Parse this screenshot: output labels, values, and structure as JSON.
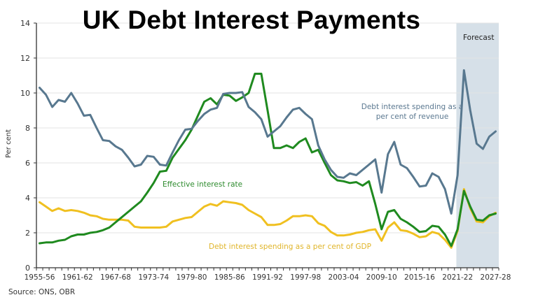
{
  "chart_data": {
    "type": "line",
    "title": "UK Debt Interest Payments",
    "xlabel": "",
    "ylabel": "Per cent",
    "ylim": [
      0,
      14
    ],
    "yticks": [
      0,
      2,
      4,
      6,
      8,
      10,
      12,
      14
    ],
    "grid": true,
    "x_tick_labels": [
      "1955-56",
      "1961-62",
      "1967-68",
      "1973-74",
      "1979-80",
      "1985-86",
      "1991-92",
      "1997-98",
      "2003-04",
      "2009-10",
      "2015-16",
      "2021-22",
      "2027-28"
    ],
    "x_start_year": 1955,
    "x": [
      "1955-56",
      "1956-57",
      "1957-58",
      "1958-59",
      "1959-60",
      "1960-61",
      "1961-62",
      "1962-63",
      "1963-64",
      "1964-65",
      "1965-66",
      "1966-67",
      "1967-68",
      "1968-69",
      "1969-70",
      "1970-71",
      "1971-72",
      "1972-73",
      "1973-74",
      "1974-75",
      "1975-76",
      "1976-77",
      "1977-78",
      "1978-79",
      "1979-80",
      "1980-81",
      "1981-82",
      "1982-83",
      "1983-84",
      "1984-85",
      "1985-86",
      "1986-87",
      "1987-88",
      "1988-89",
      "1989-90",
      "1990-91",
      "1991-92",
      "1992-93",
      "1993-94",
      "1994-95",
      "1995-96",
      "1996-97",
      "1997-98",
      "1998-99",
      "1999-00",
      "2000-01",
      "2001-02",
      "2002-03",
      "2003-04",
      "2004-05",
      "2005-06",
      "2006-07",
      "2007-08",
      "2008-09",
      "2009-10",
      "2010-11",
      "2011-12",
      "2012-13",
      "2013-14",
      "2014-15",
      "2015-16",
      "2016-17",
      "2017-18",
      "2018-19",
      "2019-20",
      "2020-21",
      "2021-22",
      "2022-23",
      "2023-24",
      "2024-25",
      "2025-26",
      "2026-27",
      "2027-28"
    ],
    "forecast_region": {
      "label": "Forecast",
      "from": "2021-22",
      "to": "2027-28",
      "color": "#d6e0e8"
    },
    "series": [
      {
        "name": "Debt interest spending as a per cent of revenue",
        "color": "#58788f",
        "values": [
          10.3,
          9.9,
          9.2,
          9.6,
          9.5,
          10.0,
          9.4,
          8.7,
          8.75,
          8.0,
          7.3,
          7.25,
          6.95,
          6.75,
          6.3,
          5.8,
          5.9,
          6.4,
          6.35,
          5.9,
          5.85,
          6.6,
          7.3,
          7.9,
          7.95,
          8.4,
          8.8,
          9.05,
          9.15,
          9.95,
          10.0,
          10.0,
          10.05,
          9.2,
          8.9,
          8.5,
          7.5,
          7.8,
          8.1,
          8.6,
          9.05,
          9.15,
          8.8,
          8.5,
          7.0,
          6.2,
          5.6,
          5.2,
          5.15,
          5.4,
          5.3,
          5.6,
          5.9,
          6.2,
          4.3,
          6.5,
          7.2,
          5.9,
          5.7,
          5.2,
          4.65,
          4.7,
          5.4,
          5.2,
          4.5,
          3.1,
          5.3,
          11.3,
          9.0,
          7.1,
          6.8,
          7.5,
          7.8
        ]
      },
      {
        "name": "Effective interest rate",
        "color": "#1f8a1f",
        "values": [
          1.4,
          1.45,
          1.45,
          1.55,
          1.6,
          1.8,
          1.9,
          1.9,
          2.0,
          2.05,
          2.15,
          2.3,
          2.6,
          2.9,
          3.2,
          3.5,
          3.8,
          4.3,
          4.85,
          5.5,
          5.55,
          6.3,
          6.8,
          7.3,
          7.9,
          8.7,
          9.5,
          9.7,
          9.35,
          9.9,
          9.85,
          9.55,
          9.75,
          10.0,
          11.1,
          11.1,
          9.0,
          6.85,
          6.85,
          7.0,
          6.85,
          7.2,
          7.4,
          6.6,
          6.75,
          6.0,
          5.3,
          5.0,
          4.95,
          4.85,
          4.9,
          4.7,
          4.95,
          3.65,
          2.2,
          3.2,
          3.3,
          2.8,
          2.6,
          2.35,
          2.05,
          2.1,
          2.4,
          2.35,
          1.9,
          1.25,
          2.2,
          4.4,
          3.5,
          2.75,
          2.7,
          3.0,
          3.1
        ]
      },
      {
        "name": "Debt interest spending as a per cent of GDP",
        "color": "#f0c020",
        "values": [
          3.75,
          3.5,
          3.25,
          3.4,
          3.25,
          3.3,
          3.25,
          3.15,
          3.0,
          2.95,
          2.8,
          2.75,
          2.75,
          2.75,
          2.7,
          2.35,
          2.3,
          2.3,
          2.3,
          2.3,
          2.35,
          2.65,
          2.75,
          2.85,
          2.9,
          3.2,
          3.5,
          3.65,
          3.55,
          3.8,
          3.75,
          3.7,
          3.6,
          3.3,
          3.1,
          2.9,
          2.45,
          2.45,
          2.5,
          2.7,
          2.95,
          2.95,
          3.0,
          2.95,
          2.55,
          2.4,
          2.05,
          1.85,
          1.85,
          1.9,
          2.0,
          2.05,
          2.15,
          2.2,
          1.55,
          2.3,
          2.6,
          2.15,
          2.1,
          1.95,
          1.75,
          1.8,
          2.05,
          1.95,
          1.6,
          1.15,
          2.1,
          4.5,
          3.4,
          2.65,
          2.6,
          2.95,
          3.15
        ]
      }
    ],
    "annotations": {
      "revenue": [
        "Debt interest spending as a",
        "per cent of revenue"
      ],
      "effective": "Effective interest rate",
      "gdp": "Debt interest spending as a per cent of GDP"
    },
    "source": "Source: ONS, OBR"
  }
}
